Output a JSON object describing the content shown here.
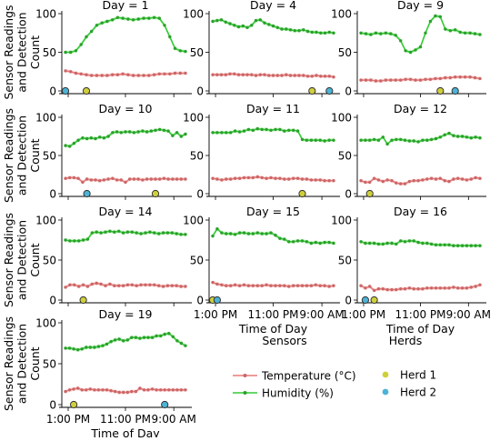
{
  "figure": {
    "ylabel_lines": [
      "Sensor Readings",
      "and Detection",
      "Count"
    ],
    "xlabel": "Time of Day",
    "x_ticks": [
      "1:00 PM",
      "11:00 PM",
      "9:00 AM"
    ]
  },
  "legend": {
    "sensors_title": "Sensors",
    "sensors": [
      {
        "name": "Temperature (°C)",
        "color": "#e8787a",
        "marker_color": "#cc6666"
      },
      {
        "name": "Humidity (%)",
        "color": "#33cc33",
        "marker_color": "#2aa02a"
      }
    ],
    "herds_title": "Herds",
    "herds": [
      {
        "name": "Herd 1",
        "color": "#cfcf3c"
      },
      {
        "name": "Herd 2",
        "color": "#4bb3d6"
      }
    ]
  },
  "chart_data": [
    {
      "type": "line",
      "title": "Day = 1",
      "ylim": [
        0,
        100
      ],
      "yticks": [
        0,
        50,
        100
      ],
      "humidity": [
        50,
        50,
        52,
        60,
        70,
        77,
        85,
        88,
        90,
        92,
        95,
        94,
        93,
        92,
        93,
        94,
        94,
        95,
        94,
        85,
        70,
        55,
        52,
        51
      ],
      "temperature": [
        26,
        25,
        23,
        22,
        21,
        20,
        20,
        20,
        20,
        21,
        21,
        22,
        21,
        20,
        20,
        20,
        20,
        21,
        22,
        22,
        22,
        23,
        23,
        23
      ],
      "herd1": [
        4
      ],
      "herd2": [
        0
      ]
    },
    {
      "type": "line",
      "title": "Day = 4",
      "ylim": [
        0,
        100
      ],
      "yticks": [
        0,
        50,
        100
      ],
      "humidity": [
        90,
        91,
        92,
        89,
        87,
        85,
        83,
        84,
        82,
        85,
        91,
        92,
        88,
        86,
        84,
        82,
        80,
        80,
        79,
        78,
        78,
        79,
        77,
        76,
        76,
        75,
        75,
        76,
        75
      ],
      "temperature": [
        21,
        21,
        21,
        21,
        22,
        22,
        21,
        21,
        21,
        21,
        20,
        21,
        21,
        20,
        20,
        20,
        20,
        21,
        20,
        20,
        20,
        20,
        19,
        19,
        20,
        19,
        19,
        19,
        18
      ],
      "herd1": [
        23
      ],
      "herd2": [
        27
      ]
    },
    {
      "type": "line",
      "title": "Day = 9",
      "ylim": [
        0,
        100
      ],
      "yticks": [
        0,
        50,
        100
      ],
      "humidity": [
        75,
        74,
        73,
        75,
        74,
        75,
        74,
        72,
        65,
        52,
        50,
        53,
        57,
        75,
        90,
        97,
        96,
        80,
        78,
        79,
        76,
        75,
        75,
        74,
        73
      ],
      "temperature": [
        14,
        14,
        14,
        13,
        13,
        14,
        14,
        14,
        14,
        15,
        15,
        14,
        14,
        15,
        15,
        16,
        16,
        17,
        17,
        18,
        18,
        18,
        18,
        17,
        16
      ],
      "herd1": [
        16
      ],
      "herd2": [
        19
      ]
    },
    {
      "type": "line",
      "title": "Day = 10",
      "ylim": [
        0,
        100
      ],
      "yticks": [
        0,
        50,
        100
      ],
      "humidity": [
        63,
        62,
        66,
        70,
        73,
        72,
        73,
        72,
        74,
        73,
        75,
        80,
        81,
        80,
        81,
        81,
        80,
        81,
        82,
        81,
        82,
        83,
        84,
        83,
        82,
        76,
        80,
        75,
        78
      ],
      "temperature": [
        20,
        21,
        21,
        20,
        15,
        19,
        18,
        18,
        17,
        18,
        19,
        20,
        18,
        18,
        15,
        19,
        19,
        19,
        18,
        19,
        19,
        19,
        19,
        20,
        19,
        19,
        19,
        19,
        19
      ],
      "herd1": [
        21
      ],
      "herd2": [
        5
      ]
    },
    {
      "type": "line",
      "title": "Day = 11",
      "ylim": [
        0,
        100
      ],
      "yticks": [
        0,
        50,
        100
      ],
      "humidity": [
        80,
        80,
        80,
        80,
        80,
        82,
        81,
        82,
        84,
        83,
        85,
        84,
        84,
        83,
        84,
        84,
        82,
        83,
        83,
        82,
        71,
        70,
        70,
        70,
        70,
        69,
        70,
        70
      ],
      "temperature": [
        20,
        19,
        18,
        19,
        19,
        20,
        20,
        21,
        21,
        21,
        22,
        21,
        20,
        21,
        20,
        20,
        19,
        19,
        20,
        20,
        19,
        19,
        18,
        18,
        18,
        17,
        17,
        17
      ],
      "herd1": [
        20
      ],
      "herd2": []
    },
    {
      "type": "line",
      "title": "Day = 12",
      "ylim": [
        0,
        100
      ],
      "yticks": [
        0,
        50,
        100
      ],
      "humidity": [
        70,
        70,
        70,
        71,
        70,
        74,
        65,
        70,
        71,
        71,
        70,
        69,
        69,
        68,
        70,
        70,
        71,
        72,
        74,
        77,
        79,
        76,
        75,
        75,
        74,
        73,
        74,
        73
      ],
      "temperature": [
        17,
        15,
        15,
        20,
        18,
        16,
        18,
        17,
        14,
        13,
        13,
        16,
        17,
        17,
        18,
        19,
        20,
        19,
        20,
        17,
        16,
        19,
        20,
        19,
        18,
        19,
        21,
        20
      ],
      "herd1": [
        2
      ],
      "herd2": []
    },
    {
      "type": "line",
      "title": "Day = 14",
      "ylim": [
        0,
        100
      ],
      "yticks": [
        0,
        50,
        100
      ],
      "humidity": [
        75,
        74,
        74,
        74,
        75,
        76,
        84,
        85,
        84,
        85,
        86,
        85,
        86,
        84,
        85,
        85,
        84,
        83,
        84,
        85,
        84,
        83,
        84,
        84,
        84,
        83,
        82,
        82
      ],
      "temperature": [
        16,
        19,
        19,
        17,
        19,
        17,
        20,
        21,
        20,
        18,
        20,
        18,
        18,
        18,
        19,
        19,
        18,
        19,
        19,
        19,
        19,
        18,
        17,
        18,
        18,
        18,
        17,
        17
      ],
      "herd1": [
        4
      ],
      "herd2": []
    },
    {
      "type": "line",
      "title": "Day = 15",
      "ylim": [
        0,
        100
      ],
      "yticks": [
        0,
        50,
        100
      ],
      "humidity": [
        80,
        89,
        84,
        83,
        83,
        82,
        84,
        84,
        83,
        83,
        84,
        83,
        83,
        84,
        81,
        77,
        76,
        73,
        73,
        74,
        74,
        73,
        71,
        72,
        71,
        72,
        72,
        71
      ],
      "temperature": [
        22,
        20,
        19,
        18,
        18,
        19,
        18,
        19,
        18,
        18,
        18,
        18,
        19,
        18,
        18,
        18,
        18,
        17,
        18,
        18,
        18,
        18,
        18,
        19,
        18,
        18,
        17,
        18
      ],
      "herd1": [
        0
      ],
      "herd2": [
        1
      ]
    },
    {
      "type": "line",
      "title": "Day = 16",
      "ylim": [
        0,
        100
      ],
      "yticks": [
        0,
        50,
        100
      ],
      "humidity": [
        73,
        71,
        71,
        71,
        70,
        70,
        71,
        71,
        70,
        74,
        73,
        74,
        74,
        72,
        71,
        71,
        70,
        69,
        69,
        69,
        69,
        68,
        68,
        68,
        68,
        68,
        68,
        68
      ],
      "temperature": [
        18,
        15,
        17,
        12,
        14,
        14,
        13,
        13,
        13,
        14,
        14,
        15,
        14,
        14,
        14,
        15,
        15,
        15,
        15,
        15,
        15,
        16,
        15,
        15,
        15,
        16,
        17,
        19
      ],
      "herd1": [
        3
      ],
      "herd2": [
        1
      ]
    },
    {
      "type": "line",
      "title": "Day = 19",
      "ylim": [
        0,
        100
      ],
      "yticks": [
        0,
        50,
        100
      ],
      "humidity": [
        69,
        69,
        68,
        67,
        68,
        70,
        70,
        70,
        71,
        72,
        74,
        77,
        79,
        80,
        78,
        79,
        82,
        82,
        81,
        82,
        82,
        82,
        84,
        84,
        86,
        87,
        83,
        78,
        75,
        72
      ],
      "temperature": [
        16,
        18,
        19,
        20,
        18,
        18,
        19,
        18,
        18,
        18,
        18,
        17,
        16,
        15,
        15,
        15,
        16,
        16,
        20,
        18,
        18,
        19,
        18,
        18,
        18,
        18,
        18,
        18,
        18,
        18
      ],
      "herd1": [
        2
      ],
      "herd2": [
        24
      ]
    }
  ]
}
